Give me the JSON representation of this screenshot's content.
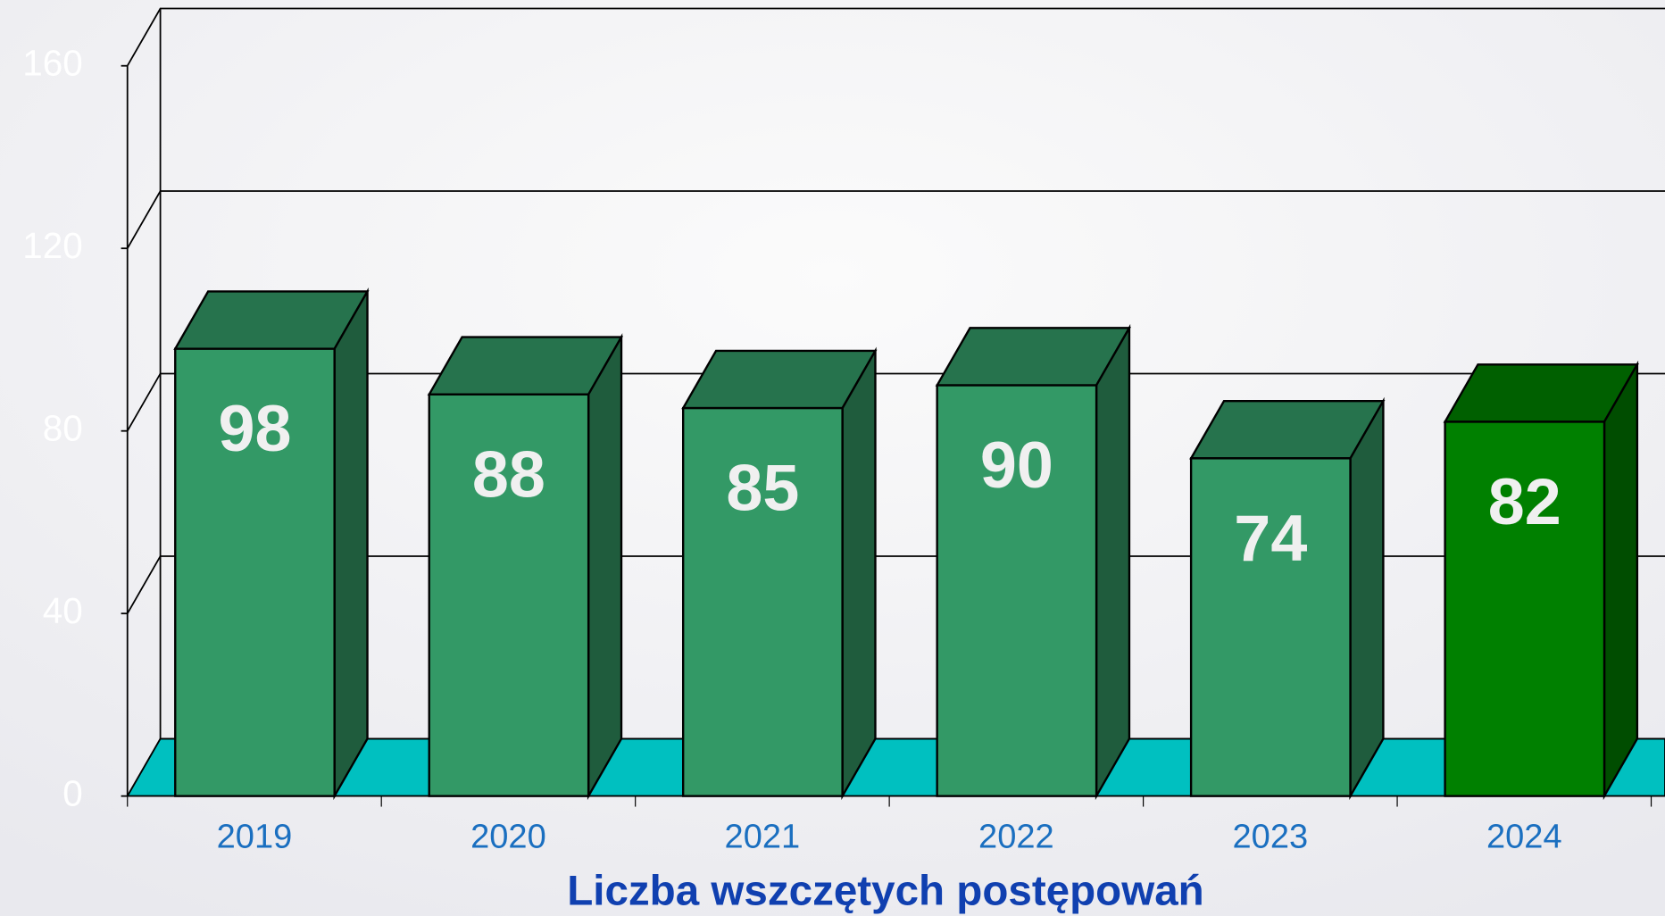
{
  "chart_data": {
    "type": "bar3d",
    "title": "Liczba wszczętych postępowań",
    "categories": [
      "2019",
      "2020",
      "2021",
      "2022",
      "2023",
      "2024"
    ],
    "values": [
      98,
      88,
      85,
      90,
      74,
      82
    ],
    "colors": [
      "#339966",
      "#339966",
      "#339966",
      "#339966",
      "#339966",
      "#008000"
    ],
    "ylim": [
      0,
      160
    ],
    "yticks": [
      0,
      40,
      80,
      120,
      160
    ],
    "grid": true,
    "floor_color": "#00c0c0"
  }
}
